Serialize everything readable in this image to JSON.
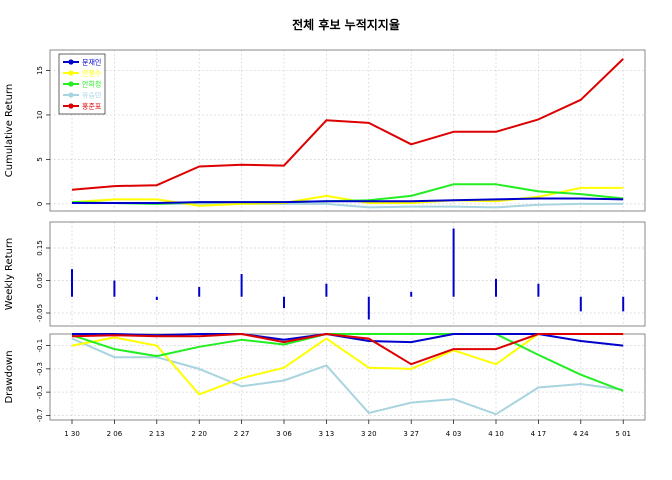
{
  "chart_data": {
    "type": "line",
    "title": "전체 후보 누적지지율",
    "x": [
      "1 30",
      "2 06",
      "2 13",
      "2 20",
      "2 27",
      "3 06",
      "3 13",
      "3 20",
      "3 27",
      "4 03",
      "4 10",
      "4 17",
      "4 24",
      "5 01"
    ],
    "colors": {
      "s1": "#0000cc",
      "s2": "#ffff00",
      "s3": "#22ee22",
      "s4": "#a8d4e0",
      "s5": "#dd0000"
    },
    "panels": [
      {
        "ylabel": "Cumulative Return",
        "ylim": [
          -0.8,
          17.3
        ],
        "yticks": [
          0,
          5,
          10,
          15
        ],
        "tick_labels": [
          "0",
          "5",
          "10",
          "15"
        ],
        "legend": {
          "placement": "top-left",
          "entries": [
            {
              "name": "문재인",
              "color": "#0000cc"
            },
            {
              "name": "안철수",
              "color": "#ffff00"
            },
            {
              "name": "안희정",
              "color": "#22ee22"
            },
            {
              "name": "유승민",
              "color": "#a8d4e0"
            },
            {
              "name": "홍준표",
              "color": "#dd0000"
            }
          ]
        },
        "series": [
          {
            "color": "#a8d4e0",
            "values": [
              0.1,
              0.1,
              0.0,
              0.0,
              0.0,
              0.0,
              0.0,
              -0.4,
              -0.3,
              -0.3,
              -0.4,
              -0.1,
              0.0,
              0.0
            ]
          },
          {
            "color": "#ffff00",
            "values": [
              0.2,
              0.5,
              0.5,
              -0.2,
              0.0,
              0.1,
              0.9,
              0.1,
              0.1,
              0.4,
              0.3,
              0.8,
              1.8,
              1.8
            ]
          },
          {
            "color": "#22ee22",
            "values": [
              0.2,
              0.1,
              0.0,
              0.2,
              0.2,
              0.2,
              0.3,
              0.4,
              0.9,
              2.2,
              2.2,
              1.4,
              1.1,
              0.6
            ]
          },
          {
            "color": "#0000cc",
            "values": [
              0.1,
              0.1,
              0.1,
              0.2,
              0.2,
              0.2,
              0.3,
              0.3,
              0.3,
              0.4,
              0.5,
              0.6,
              0.6,
              0.5
            ]
          },
          {
            "color": "#dd0000",
            "values": [
              1.6,
              2.0,
              2.1,
              4.2,
              4.4,
              4.3,
              9.4,
              9.1,
              6.7,
              8.1,
              8.1,
              9.5,
              11.7,
              16.3
            ]
          }
        ]
      },
      {
        "ylabel": "Weekly Return",
        "type": "bar",
        "ylim": [
          -0.09,
          0.23
        ],
        "yticks": [
          -0.05,
          0.05,
          0.15
        ],
        "tick_labels": [
          "-0.05",
          "0.05",
          "0.15"
        ],
        "series": [
          {
            "color": "#0000cc",
            "values": [
              0.085,
              0.05,
              -0.01,
              0.03,
              0.07,
              -0.035,
              0.04,
              -0.07,
              0.015,
              0.21,
              0.055,
              0.04,
              -0.045,
              -0.045
            ]
          }
        ]
      },
      {
        "ylabel": "Drawdown",
        "ylim": [
          -0.74,
          0.0
        ],
        "yticks": [
          -0.1,
          -0.3,
          -0.5,
          -0.7
        ],
        "tick_labels": [
          "-0.1",
          "-0.3",
          "-0.5",
          "-0.7"
        ],
        "series": [
          {
            "color": "#a8d4e0",
            "values": [
              -0.04,
              -0.2,
              -0.2,
              -0.3,
              -0.45,
              -0.4,
              -0.27,
              -0.68,
              -0.59,
              -0.56,
              -0.69,
              -0.46,
              -0.43,
              -0.48
            ]
          },
          {
            "color": "#ffff00",
            "values": [
              -0.1,
              -0.03,
              -0.1,
              -0.52,
              -0.38,
              -0.29,
              -0.04,
              -0.29,
              -0.3,
              -0.14,
              -0.26,
              0.0,
              0.0,
              0.0
            ]
          },
          {
            "color": "#22ee22",
            "values": [
              -0.01,
              -0.13,
              -0.19,
              -0.11,
              -0.05,
              -0.09,
              0.0,
              0.0,
              0.0,
              0.0,
              0.0,
              -0.18,
              -0.35,
              -0.49
            ]
          },
          {
            "color": "#0000cc",
            "values": [
              0.0,
              0.0,
              -0.01,
              0.0,
              0.0,
              -0.05,
              0.0,
              -0.06,
              -0.07,
              0.0,
              0.0,
              0.0,
              -0.06,
              -0.1
            ]
          },
          {
            "color": "#dd0000",
            "values": [
              -0.02,
              -0.01,
              -0.02,
              -0.02,
              0.0,
              -0.07,
              0.0,
              -0.04,
              -0.26,
              -0.13,
              -0.13,
              0.0,
              0.0,
              0.0
            ]
          }
        ]
      }
    ]
  }
}
